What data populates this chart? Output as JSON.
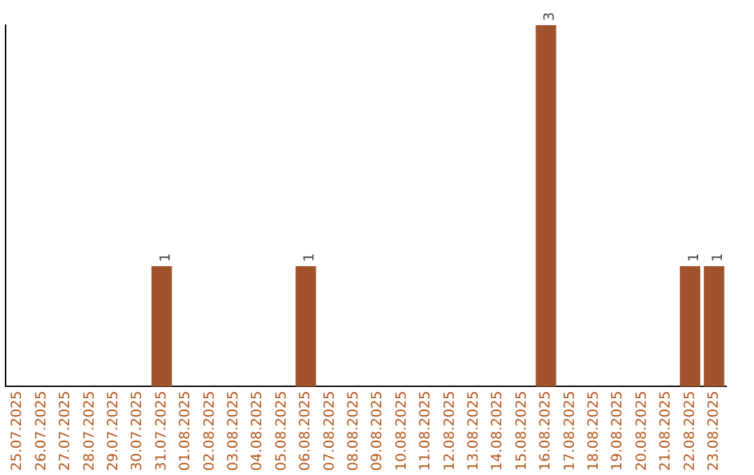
{
  "chart_data": {
    "type": "bar",
    "categories": [
      "25.07.2025",
      "26.07.2025",
      "27.07.2025",
      "28.07.2025",
      "29.07.2025",
      "30.07.2025",
      "31.07.2025",
      "01.08.2025",
      "02.08.2025",
      "03.08.2025",
      "04.08.2025",
      "05.08.2025",
      "06.08.2025",
      "07.08.2025",
      "08.08.2025",
      "09.08.2025",
      "10.08.2025",
      "11.08.2025",
      "12.08.2025",
      "13.08.2025",
      "14.08.2025",
      "15.08.2025",
      "16.08.2025",
      "17.08.2025",
      "18.08.2025",
      "19.08.2025",
      "20.08.2025",
      "21.08.2025",
      "22.08.2025",
      "23.08.2025"
    ],
    "values": [
      0,
      0,
      0,
      0,
      0,
      0,
      1,
      0,
      0,
      0,
      0,
      0,
      1,
      0,
      0,
      0,
      0,
      0,
      0,
      0,
      0,
      0,
      3,
      0,
      0,
      0,
      0,
      0,
      1,
      1
    ],
    "color": "#a0522d",
    "value_labels": [
      null,
      null,
      null,
      null,
      null,
      null,
      "1",
      null,
      null,
      null,
      null,
      null,
      "1",
      null,
      null,
      null,
      null,
      null,
      null,
      null,
      null,
      null,
      "3",
      null,
      null,
      null,
      null,
      null,
      "1",
      "1"
    ],
    "grid": false,
    "legend": false,
    "tick_labels": "x"
  }
}
